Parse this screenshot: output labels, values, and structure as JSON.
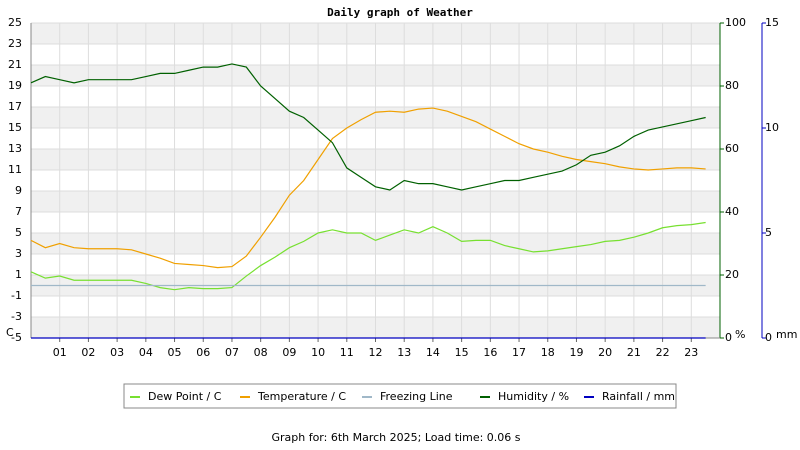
{
  "chart_data": {
    "type": "line",
    "title": "Daily graph of Weather",
    "footer": "Graph for: 6th March 2025; Load time: 0.06 s",
    "y_label": "C",
    "y2_label": "%",
    "y3_label": "mm",
    "x": [
      0,
      0.5,
      1,
      1.5,
      2,
      2.5,
      3,
      3.5,
      4,
      4.5,
      5,
      5.5,
      6,
      6.5,
      7,
      7.5,
      8,
      8.5,
      9,
      9.5,
      10,
      10.5,
      11,
      11.5,
      12,
      12.5,
      13,
      13.5,
      14,
      14.5,
      15,
      15.5,
      16,
      16.5,
      17,
      17.5,
      18,
      18.5,
      19,
      19.5,
      20,
      20.5,
      21,
      21.5,
      22,
      22.5,
      23,
      23.5
    ],
    "xlim": [
      0,
      24
    ],
    "xticks": [
      {
        "value": 1,
        "label": "01"
      },
      {
        "value": 2,
        "label": "02"
      },
      {
        "value": 3,
        "label": "03"
      },
      {
        "value": 4,
        "label": "04"
      },
      {
        "value": 5,
        "label": "05"
      },
      {
        "value": 6,
        "label": "06"
      },
      {
        "value": 7,
        "label": "07"
      },
      {
        "value": 8,
        "label": "08"
      },
      {
        "value": 9,
        "label": "09"
      },
      {
        "value": 10,
        "label": "10"
      },
      {
        "value": 11,
        "label": "11"
      },
      {
        "value": 12,
        "label": "12"
      },
      {
        "value": 13,
        "label": "13"
      },
      {
        "value": 14,
        "label": "14"
      },
      {
        "value": 15,
        "label": "15"
      },
      {
        "value": 16,
        "label": "16"
      },
      {
        "value": 17,
        "label": "17"
      },
      {
        "value": 18,
        "label": "18"
      },
      {
        "value": 19,
        "label": "19"
      },
      {
        "value": 20,
        "label": "20"
      },
      {
        "value": 21,
        "label": "21"
      },
      {
        "value": 22,
        "label": "22"
      },
      {
        "value": 23,
        "label": "23"
      }
    ],
    "ylim": [
      -5,
      25
    ],
    "yticks": [
      -5,
      -3,
      -1,
      1,
      3,
      5,
      7,
      9,
      11,
      13,
      15,
      17,
      19,
      21,
      23,
      25
    ],
    "y2lim": [
      0,
      100
    ],
    "y2ticks": [
      0,
      20,
      40,
      60,
      80,
      100
    ],
    "y3lim": [
      0,
      15
    ],
    "y3ticks": [
      0,
      5,
      10,
      15
    ],
    "grid": true,
    "series": [
      {
        "name": "Dew Point / C",
        "color": "#77e030",
        "axis": "y",
        "values": [
          1.3,
          0.7,
          0.9,
          0.5,
          0.5,
          0.5,
          0.5,
          0.5,
          0.2,
          -0.2,
          -0.4,
          -0.2,
          -0.3,
          -0.3,
          -0.2,
          0.9,
          1.9,
          2.7,
          3.6,
          4.2,
          5.0,
          5.3,
          5.0,
          5.0,
          4.3,
          4.8,
          5.3,
          5.0,
          5.6,
          5.0,
          4.2,
          4.3,
          4.3,
          3.8,
          3.5,
          3.2,
          3.3,
          3.5,
          3.7,
          3.9,
          4.2,
          4.3,
          4.6,
          5.0,
          5.5,
          5.7,
          5.8,
          6.0
        ]
      },
      {
        "name": "Temperature / C",
        "color": "#f0a000",
        "axis": "y",
        "values": [
          4.3,
          3.6,
          4.0,
          3.6,
          3.5,
          3.5,
          3.5,
          3.4,
          3.0,
          2.6,
          2.1,
          2.0,
          1.9,
          1.7,
          1.8,
          2.8,
          4.6,
          6.5,
          8.6,
          10.0,
          12.0,
          14.0,
          15.0,
          15.8,
          16.5,
          16.6,
          16.5,
          16.8,
          16.9,
          16.6,
          16.1,
          15.6,
          14.9,
          14.2,
          13.5,
          13.0,
          12.7,
          12.3,
          12.0,
          11.8,
          11.6,
          11.3,
          11.1,
          11.0,
          11.1,
          11.2,
          11.2,
          11.1
        ]
      },
      {
        "name": "Freezing Line",
        "color": "#a0b8c8",
        "axis": "y",
        "values": [
          0,
          0,
          0,
          0,
          0,
          0,
          0,
          0,
          0,
          0,
          0,
          0,
          0,
          0,
          0,
          0,
          0,
          0,
          0,
          0,
          0,
          0,
          0,
          0,
          0,
          0,
          0,
          0,
          0,
          0,
          0,
          0,
          0,
          0,
          0,
          0,
          0,
          0,
          0,
          0,
          0,
          0,
          0,
          0,
          0,
          0,
          0,
          0
        ]
      },
      {
        "name": "Humidity / %",
        "color": "#006000",
        "axis": "y2",
        "values": [
          81,
          83,
          82,
          81,
          82,
          82,
          82,
          82,
          83,
          84,
          84,
          85,
          86,
          86,
          87,
          86,
          80,
          76,
          72,
          70,
          66,
          62,
          54,
          51,
          48,
          47,
          50,
          49,
          49,
          48,
          47,
          48,
          49,
          50,
          50,
          51,
          52,
          53,
          55,
          58,
          59,
          61,
          64,
          66,
          67,
          68,
          69,
          70
        ]
      },
      {
        "name": "Rainfall / mm",
        "color": "#0000c0",
        "axis": "y3",
        "values": [
          0,
          0,
          0,
          0,
          0,
          0,
          0,
          0,
          0,
          0,
          0,
          0,
          0,
          0,
          0,
          0,
          0,
          0,
          0,
          0,
          0,
          0,
          0,
          0,
          0,
          0,
          0,
          0,
          0,
          0,
          0,
          0,
          0,
          0,
          0,
          0,
          0,
          0,
          0,
          0,
          0,
          0,
          0,
          0,
          0,
          0,
          0,
          0
        ]
      }
    ]
  }
}
